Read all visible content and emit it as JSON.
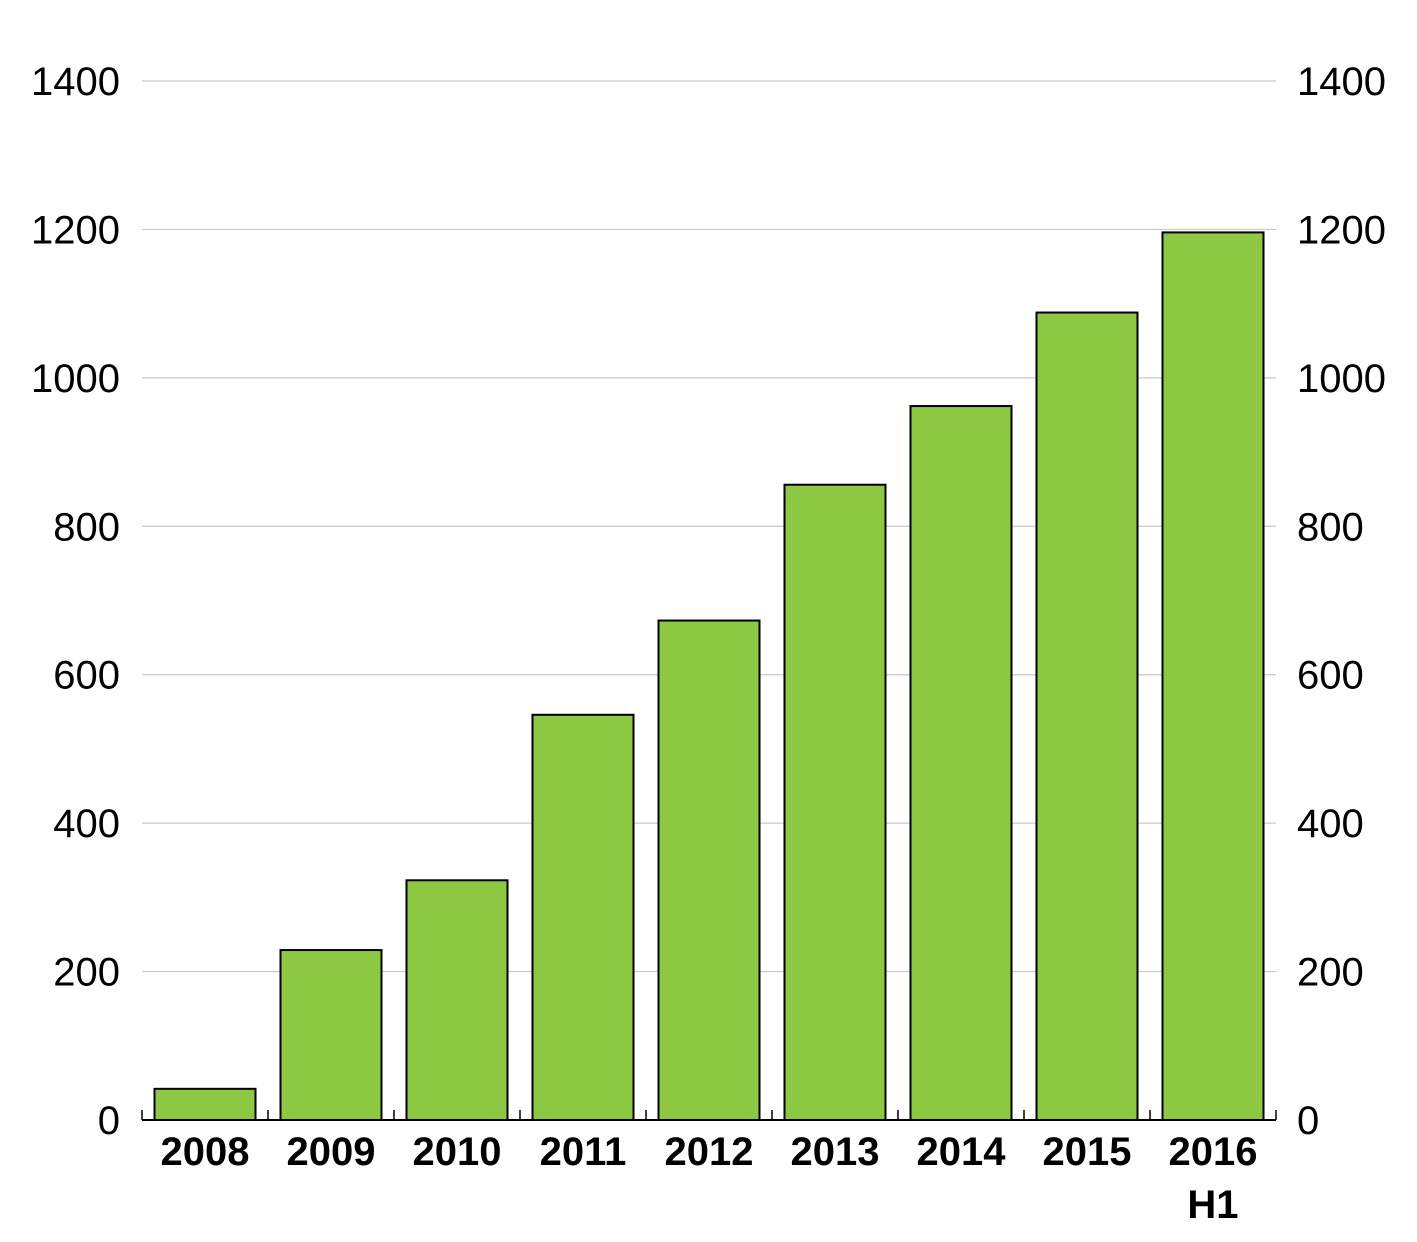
{
  "chart_data": {
    "type": "bar",
    "categories": [
      "2008",
      "2009",
      "2010",
      "2011",
      "2012",
      "2013",
      "2014",
      "2015",
      "2016"
    ],
    "category_sublabels": [
      "",
      "",
      "",
      "",
      "",
      "",
      "",
      "",
      "H1"
    ],
    "series": [
      {
        "values": [
          42,
          229,
          323,
          546,
          673,
          856,
          962,
          1088,
          1196
        ]
      }
    ],
    "title": "",
    "xlabel": "",
    "ylabel": "",
    "ylim": [
      0,
      1400
    ],
    "yticks": [
      0,
      200,
      400,
      600,
      800,
      1000,
      1200,
      1400
    ],
    "ytick_labels": [
      "0",
      "200",
      "400",
      "600",
      "800",
      "1000",
      "1200",
      "1400"
    ],
    "y_axis_sides": [
      "left",
      "right"
    ],
    "grid": true,
    "legend": "none",
    "colors": {
      "bar_fill": "#8dc843",
      "bar_stroke": "#000000",
      "grid": "#c8c8c8",
      "axis": "#000000",
      "text": "#000000"
    }
  }
}
